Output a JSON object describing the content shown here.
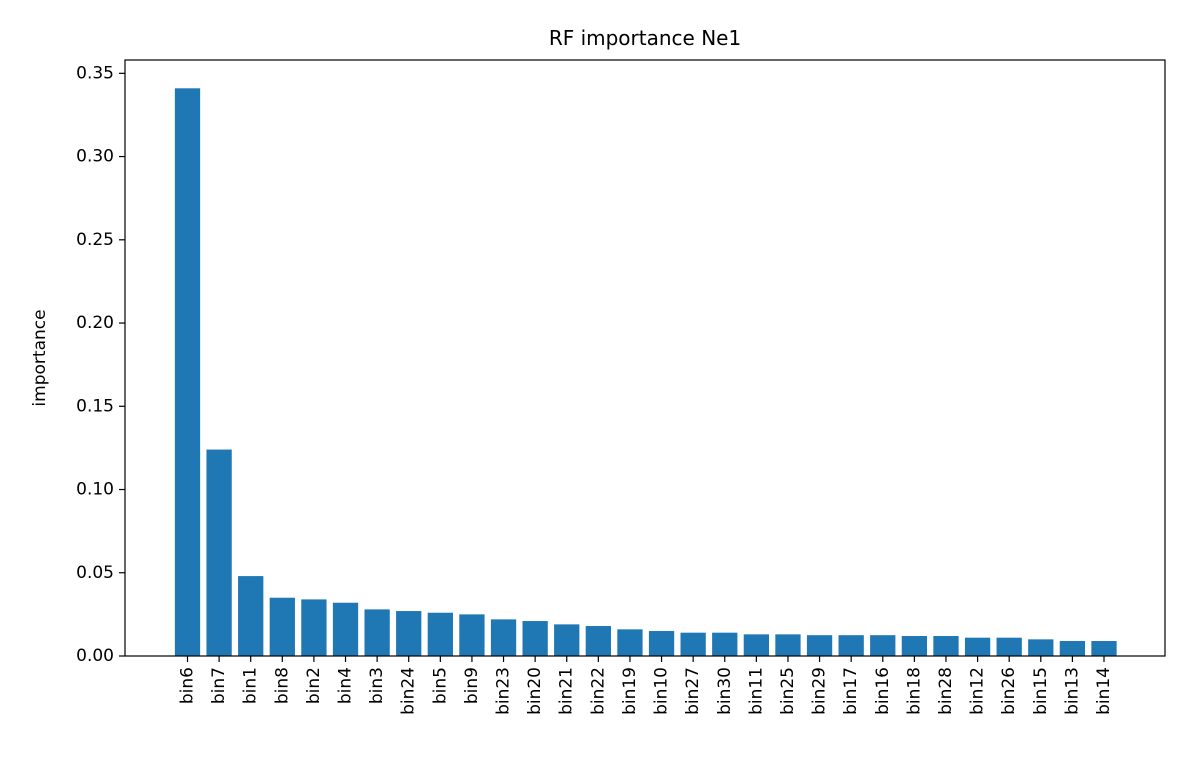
{
  "chart_data": {
    "type": "bar",
    "title": "RF importance Ne1",
    "xlabel": "",
    "ylabel": "importance",
    "ylim": [
      0,
      0.358
    ],
    "yticks": [
      0.0,
      0.05,
      0.1,
      0.15,
      0.2,
      0.25,
      0.3,
      0.35
    ],
    "ytick_labels": [
      "0.00",
      "0.05",
      "0.10",
      "0.15",
      "0.20",
      "0.25",
      "0.30",
      "0.35"
    ],
    "grid": false,
    "bar_color": "#1f77b4",
    "categories": [
      "bin6",
      "bin7",
      "bin1",
      "bin8",
      "bin2",
      "bin4",
      "bin3",
      "bin24",
      "bin5",
      "bin9",
      "bin23",
      "bin20",
      "bin21",
      "bin22",
      "bin19",
      "bin10",
      "bin27",
      "bin30",
      "bin11",
      "bin25",
      "bin29",
      "bin17",
      "bin16",
      "bin18",
      "bin28",
      "bin12",
      "bin26",
      "bin15",
      "bin13",
      "bin14"
    ],
    "values": [
      0.341,
      0.124,
      0.048,
      0.035,
      0.034,
      0.032,
      0.028,
      0.027,
      0.026,
      0.025,
      0.022,
      0.021,
      0.019,
      0.018,
      0.016,
      0.015,
      0.014,
      0.014,
      0.013,
      0.013,
      0.0125,
      0.0125,
      0.0125,
      0.012,
      0.012,
      0.011,
      0.011,
      0.01,
      0.009,
      0.009
    ]
  }
}
